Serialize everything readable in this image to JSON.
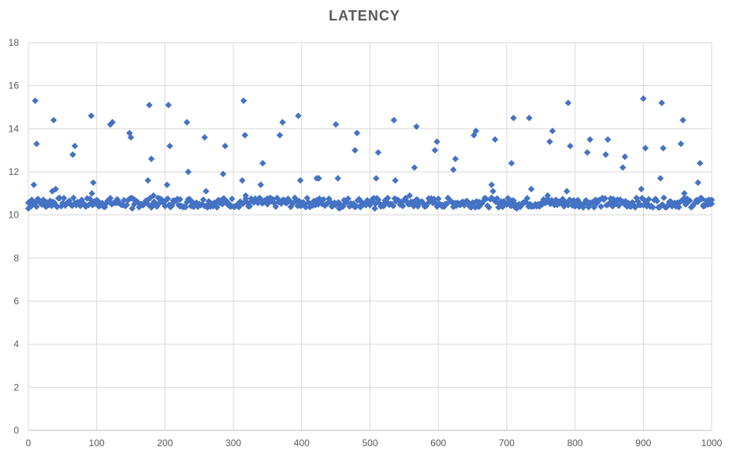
{
  "chart_data": {
    "type": "scatter",
    "title": "LATENCY",
    "xlabel": "",
    "ylabel": "",
    "xlim": [
      0,
      1000
    ],
    "ylim": [
      0,
      18
    ],
    "x_ticks": [
      0,
      100,
      200,
      300,
      400,
      500,
      600,
      700,
      800,
      900,
      1000
    ],
    "y_ticks": [
      0,
      2,
      4,
      6,
      8,
      10,
      12,
      14,
      16,
      18
    ],
    "grid": true,
    "legend": "none",
    "marker": "diamond",
    "marker_color": "#4472C4",
    "baseline": {
      "x_start": 0,
      "x_end": 1000,
      "x_step": 2,
      "y_low": 10.35,
      "y_high": 10.8
    },
    "series": [
      {
        "points": [
          [
            0,
            10.3
          ],
          [
            5,
            10.7
          ],
          [
            8,
            11.4
          ],
          [
            10,
            15.3
          ],
          [
            12,
            13.3
          ],
          [
            20,
            10.6
          ],
          [
            25,
            10.4
          ],
          [
            35,
            11.1
          ],
          [
            37,
            14.4
          ],
          [
            40,
            11.2
          ],
          [
            42,
            10.4
          ],
          [
            55,
            10.5
          ],
          [
            65,
            12.8
          ],
          [
            68,
            13.2
          ],
          [
            75,
            10.6
          ],
          [
            92,
            14.6
          ],
          [
            93,
            11.0
          ],
          [
            95,
            11.5
          ],
          [
            100,
            10.5
          ],
          [
            103,
            10.4
          ],
          [
            120,
            14.2
          ],
          [
            123,
            14.3
          ],
          [
            130,
            10.6
          ],
          [
            148,
            13.8
          ],
          [
            150,
            13.6
          ],
          [
            152,
            10.3
          ],
          [
            155,
            10.5
          ],
          [
            175,
            11.6
          ],
          [
            177,
            15.1
          ],
          [
            180,
            12.6
          ],
          [
            183,
            10.9
          ],
          [
            185,
            10.5
          ],
          [
            203,
            11.4
          ],
          [
            205,
            15.1
          ],
          [
            207,
            13.2
          ],
          [
            210,
            10.5
          ],
          [
            222,
            10.4
          ],
          [
            232,
            14.3
          ],
          [
            234,
            12.0
          ],
          [
            240,
            10.6
          ],
          [
            258,
            13.6
          ],
          [
            260,
            11.1
          ],
          [
            265,
            10.5
          ],
          [
            285,
            11.9
          ],
          [
            288,
            13.2
          ],
          [
            295,
            10.4
          ],
          [
            313,
            11.6
          ],
          [
            315,
            15.3
          ],
          [
            317,
            13.7
          ],
          [
            318,
            10.9
          ],
          [
            322,
            10.4
          ],
          [
            340,
            11.4
          ],
          [
            343,
            12.4
          ],
          [
            350,
            10.5
          ],
          [
            368,
            13.7
          ],
          [
            372,
            14.3
          ],
          [
            375,
            10.6
          ],
          [
            395,
            14.6
          ],
          [
            398,
            11.6
          ],
          [
            400,
            10.5
          ],
          [
            422,
            11.7
          ],
          [
            425,
            11.7
          ],
          [
            430,
            10.5
          ],
          [
            450,
            14.2
          ],
          [
            453,
            11.7
          ],
          [
            455,
            10.3
          ],
          [
            460,
            10.4
          ],
          [
            478,
            13.0
          ],
          [
            481,
            13.8
          ],
          [
            485,
            10.4
          ],
          [
            507,
            10.3
          ],
          [
            509,
            11.7
          ],
          [
            512,
            12.9
          ],
          [
            520,
            10.5
          ],
          [
            535,
            14.4
          ],
          [
            537,
            11.6
          ],
          [
            545,
            10.5
          ],
          [
            558,
            10.9
          ],
          [
            565,
            12.2
          ],
          [
            568,
            14.1
          ],
          [
            570,
            10.4
          ],
          [
            595,
            13.0
          ],
          [
            598,
            13.4
          ],
          [
            605,
            10.4
          ],
          [
            622,
            12.1
          ],
          [
            625,
            12.6
          ],
          [
            630,
            10.5
          ],
          [
            652,
            13.7
          ],
          [
            655,
            13.9
          ],
          [
            660,
            10.6
          ],
          [
            678,
            11.4
          ],
          [
            680,
            11.1
          ],
          [
            683,
            13.5
          ],
          [
            690,
            10.4
          ],
          [
            707,
            12.4
          ],
          [
            710,
            14.5
          ],
          [
            712,
            10.5
          ],
          [
            715,
            10.3
          ],
          [
            733,
            14.5
          ],
          [
            736,
            11.2
          ],
          [
            740,
            10.4
          ],
          [
            760,
            10.9
          ],
          [
            763,
            13.4
          ],
          [
            767,
            13.9
          ],
          [
            770,
            10.6
          ],
          [
            788,
            11.1
          ],
          [
            790,
            15.2
          ],
          [
            793,
            13.2
          ],
          [
            800,
            10.5
          ],
          [
            818,
            12.9
          ],
          [
            822,
            13.5
          ],
          [
            830,
            10.6
          ],
          [
            845,
            12.8
          ],
          [
            848,
            13.5
          ],
          [
            855,
            10.4
          ],
          [
            870,
            12.2
          ],
          [
            873,
            12.7
          ],
          [
            880,
            10.4
          ],
          [
            897,
            11.2
          ],
          [
            900,
            15.4
          ],
          [
            903,
            13.1
          ],
          [
            905,
            10.4
          ],
          [
            925,
            11.7
          ],
          [
            927,
            15.2
          ],
          [
            929,
            13.1
          ],
          [
            935,
            10.4
          ],
          [
            955,
            13.3
          ],
          [
            958,
            14.4
          ],
          [
            960,
            11.0
          ],
          [
            965,
            10.6
          ],
          [
            980,
            11.5
          ],
          [
            983,
            12.4
          ],
          [
            988,
            10.4
          ],
          [
            995,
            10.5
          ],
          [
            1000,
            10.7
          ]
        ]
      }
    ]
  }
}
